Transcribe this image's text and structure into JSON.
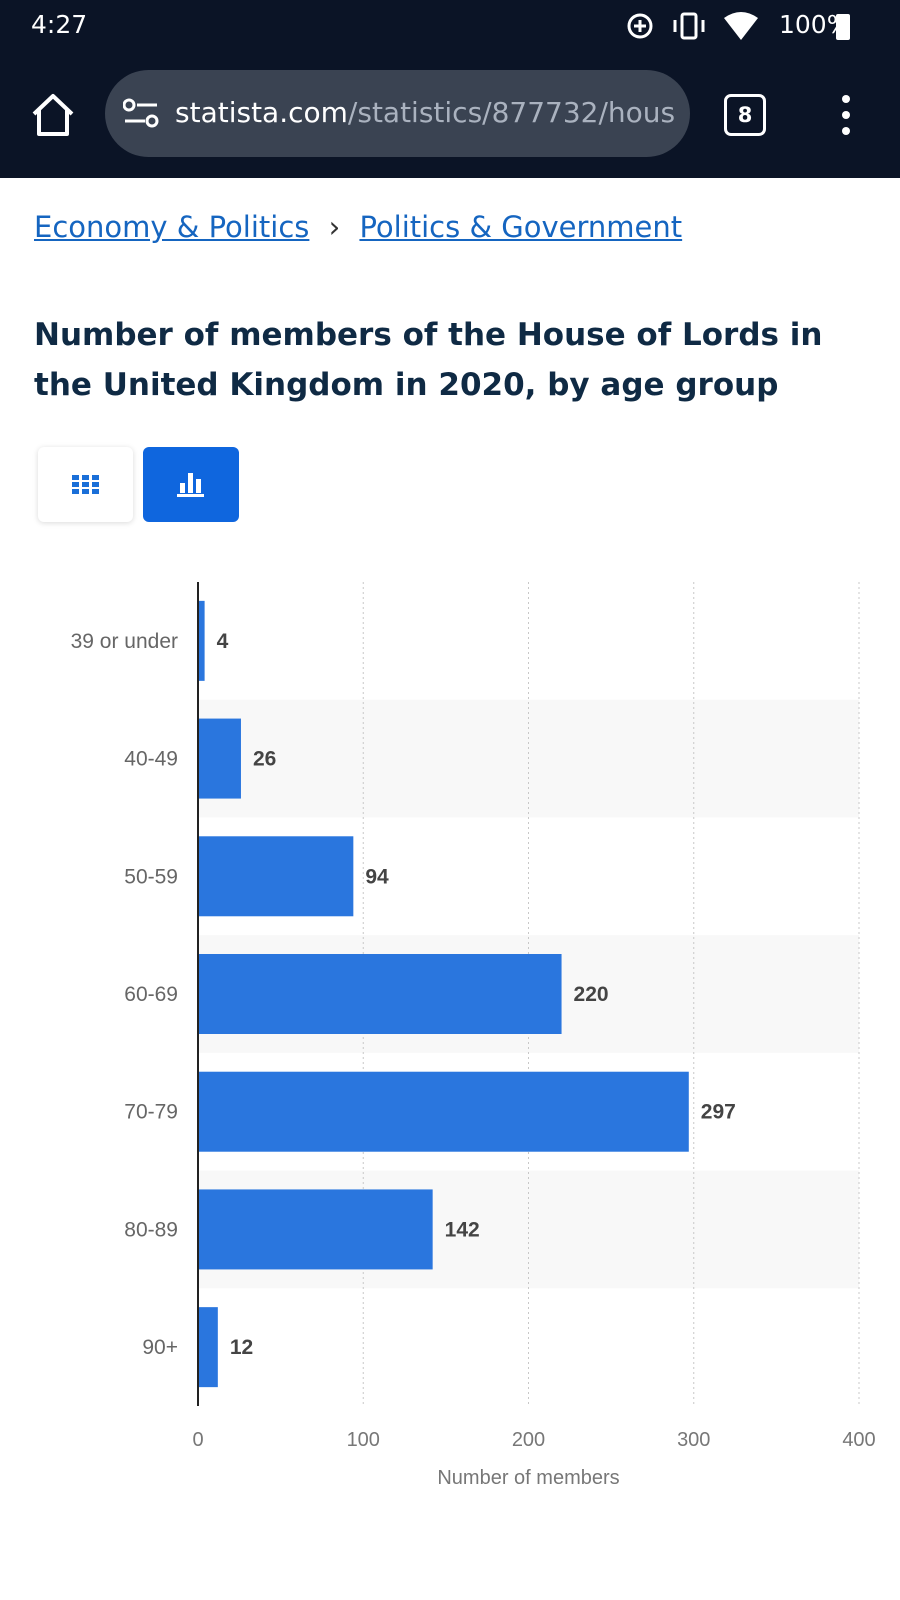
{
  "status_bar": {
    "time": "4:27",
    "battery": "100%"
  },
  "browser": {
    "url_host": "statista.com",
    "url_path": "/statistics/877732/hous",
    "tab_count": 8
  },
  "breadcrumbs": [
    "Economy & Politics",
    "Politics & Government"
  ],
  "chart_data": {
    "type": "bar",
    "orientation": "horizontal",
    "title": "Number of members of the House of Lords in the United Kingdom in 2020, by age group",
    "categories": [
      "39 or under",
      "40-49",
      "50-59",
      "60-69",
      "70-79",
      "80-89",
      "90+"
    ],
    "values": [
      4,
      26,
      94,
      220,
      297,
      142,
      12
    ],
    "color": "#2a76de",
    "xlim": [
      0,
      400
    ],
    "xticks": [
      0,
      100,
      200,
      300,
      400
    ],
    "x_label": "Number of members",
    "grid": true
  }
}
